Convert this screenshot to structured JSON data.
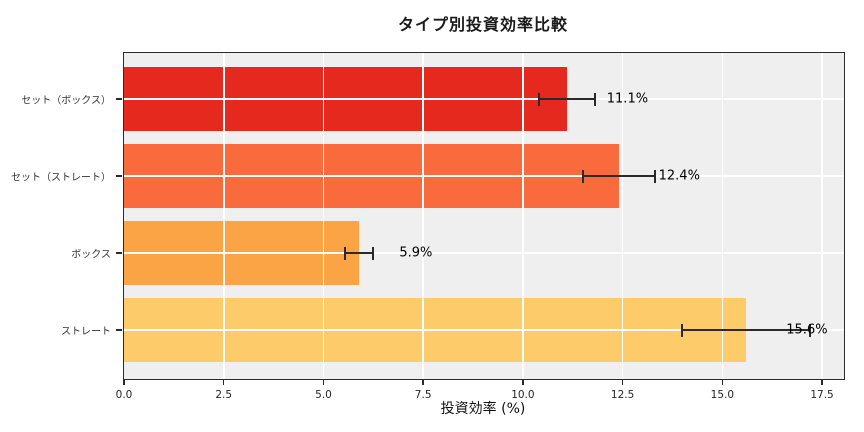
{
  "chart_data": {
    "type": "bar",
    "orientation": "horizontal",
    "title": "タイプ別投資効率比較",
    "xlabel": "投資効率 (%)",
    "ylabel": "",
    "categories": [
      "セット（ボックス）",
      "セット（ストレート）",
      "ボックス",
      "ストレート"
    ],
    "values": [
      11.1,
      12.4,
      5.9,
      15.6
    ],
    "errors": [
      0.7,
      0.9,
      0.35,
      1.6
    ],
    "value_labels": [
      "11.1%",
      "12.4%",
      "5.9%",
      "15.6%"
    ],
    "bar_colors": [
      "#e5291e",
      "#f96b3d",
      "#faa446",
      "#fdcb6a"
    ],
    "xlim": [
      0,
      18.05
    ],
    "xticks": [
      0,
      2.5,
      5,
      7.5,
      10,
      12.5,
      15,
      17.5
    ],
    "xtick_labels": [
      "0.0",
      "2.5",
      "5.0",
      "7.5",
      "10.0",
      "12.5",
      "15.0",
      "17.5"
    ],
    "grid": true,
    "grid_color": "#ffffff",
    "plot_background": "#efefef",
    "spine_color": "#2b2b2b",
    "errorbar_color": "#2a2a2a",
    "legend": null
  }
}
